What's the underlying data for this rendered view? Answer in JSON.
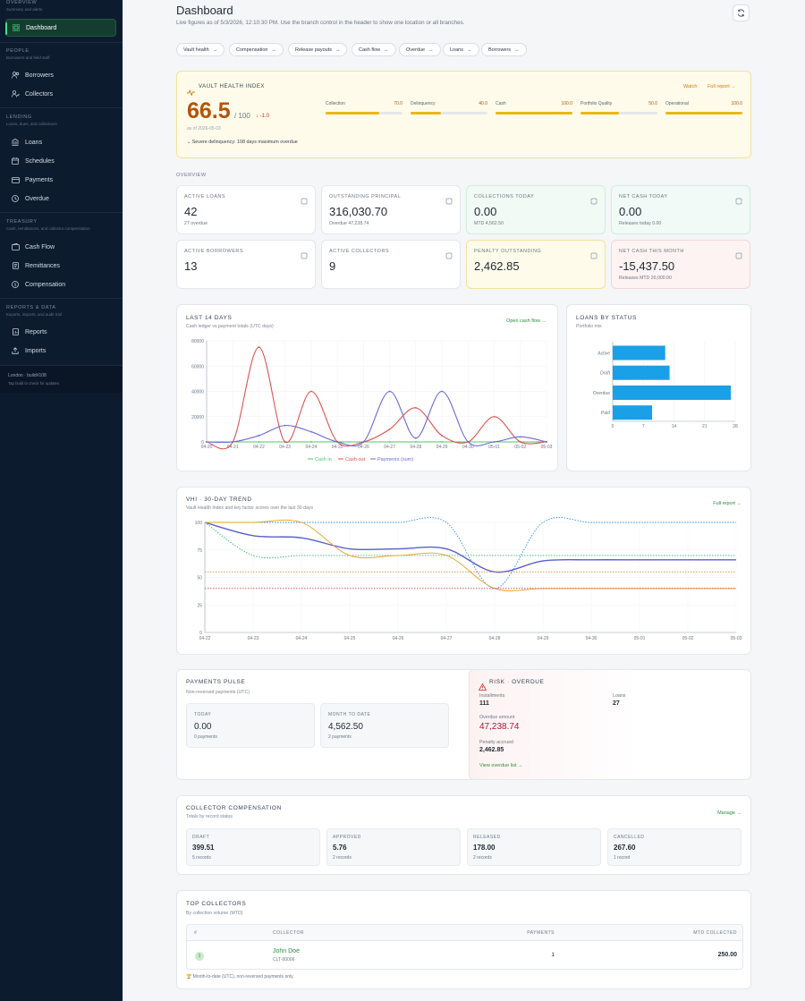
{
  "sidebar": {
    "overview": {
      "title": "OVERVIEW",
      "sub": "Summary and alerts",
      "items": [
        {
          "label": "Dashboard"
        }
      ]
    },
    "people": {
      "title": "PEOPLE",
      "sub": "Borrowers and field staff",
      "items": [
        {
          "label": "Borrowers"
        },
        {
          "label": "Collectors"
        }
      ]
    },
    "lending": {
      "title": "LENDING",
      "sub": "Loans, dues, and collections",
      "items": [
        {
          "label": "Loans"
        },
        {
          "label": "Schedules"
        },
        {
          "label": "Payments"
        },
        {
          "label": "Overdue"
        }
      ]
    },
    "treasury": {
      "title": "TREASURY",
      "sub": "Cash, remittances, and collector compensation",
      "items": [
        {
          "label": "Cash Flow"
        },
        {
          "label": "Remittances"
        },
        {
          "label": "Compensation"
        }
      ]
    },
    "reports": {
      "title": "REPORTS & DATA",
      "sub": "Exports, imports, and audit trail",
      "items": [
        {
          "label": "Reports"
        },
        {
          "label": "Imports"
        }
      ]
    },
    "footer": {
      "line1": "London · build#108",
      "line2": "Tap build to check for updates"
    }
  },
  "header": {
    "title": "Dashboard",
    "subtitle": "Live figures as of 5/3/2026, 12:10:30 PM. Use the branch control in the header to show one location or all branches."
  },
  "chips": [
    {
      "label": "Vault health"
    },
    {
      "label": "Compensation"
    },
    {
      "label": "Release payouts"
    },
    {
      "label": "Cash flow"
    },
    {
      "label": "Overdue"
    },
    {
      "label": "Loans"
    },
    {
      "label": "Borrowers"
    }
  ],
  "vhi": {
    "title": "VAULT HEALTH INDEX",
    "score": "66.5",
    "max": "/ 100",
    "delta": "↓ -1.0",
    "asof": "as of 2026-05-03",
    "status": "Watch",
    "report": "Full report →",
    "note": "Severe delinquency: 108 days maximum overdue",
    "factors": [
      {
        "name": "Collection",
        "value": "70.0",
        "pct": 0.7
      },
      {
        "name": "Delinquency",
        "value": "40.0",
        "pct": 0.4
      },
      {
        "name": "Cash",
        "value": "100.0",
        "pct": 1.0
      },
      {
        "name": "Portfolio Quality",
        "value": "50.0",
        "pct": 0.5
      },
      {
        "name": "Operational",
        "value": "100.0",
        "pct": 1.0
      }
    ]
  },
  "overview": {
    "label": "OVERVIEW",
    "kpis": [
      {
        "label": "ACTIVE LOANS",
        "value": "42",
        "sub": "27 overdue",
        "icon": "clipboard-icon"
      },
      {
        "label": "OUTSTANDING PRINCIPAL",
        "value": "316,030.70",
        "sub": "Overdue 47,238.74",
        "icon": "coins-icon"
      },
      {
        "label": "COLLECTIONS TODAY",
        "value": "0.00",
        "sub": "MTD 4,562.50",
        "icon": "cash-icon"
      },
      {
        "label": "NET CASH TODAY",
        "value": "0.00",
        "sub": "Releases today 0.00",
        "icon": "wallet-icon"
      },
      {
        "label": "ACTIVE BORROWERS",
        "value": "13",
        "sub": "",
        "icon": "users-icon"
      },
      {
        "label": "ACTIVE COLLECTORS",
        "value": "9",
        "sub": "",
        "icon": "user-icon"
      },
      {
        "label": "PENALTY OUTSTANDING",
        "value": "2,462.85",
        "sub": "",
        "icon": "scale-icon"
      },
      {
        "label": "NET CASH THIS MONTH",
        "value": "-15,437.50",
        "sub": "Releases MTD 20,000.00",
        "icon": "trend-icon"
      }
    ]
  },
  "cash_chart_card": {
    "title": "LAST 14 DAYS",
    "sub": "Cash ledger vs payment totals (UTC days)",
    "link": "Open cash flow →"
  },
  "status_chart_card": {
    "title": "LOANS BY STATUS",
    "sub": "Portfolio mix"
  },
  "vhi_trend_card": {
    "title": "VHI · 30-DAY TREND",
    "sub": "Vault Health Index and key factor scores over the last 30 days",
    "link": "Full report →"
  },
  "chart_data": [
    {
      "type": "line",
      "x": [
        "04-20",
        "04-21",
        "04-22",
        "04-23",
        "04-24",
        "04-25",
        "04-26",
        "04-27",
        "04-28",
        "04-29",
        "04-30",
        "05-01",
        "05-02",
        "05-03"
      ],
      "ylim": [
        0,
        80000
      ],
      "yticks": [
        "0",
        "20000",
        "40000",
        "60000",
        "80000"
      ],
      "legend": "bottom",
      "series": [
        {
          "name": "Cash in",
          "color": "#4cc46a",
          "values": [
            0,
            0,
            0,
            0,
            0,
            0,
            0,
            0,
            0,
            0,
            0,
            0,
            0,
            0
          ]
        },
        {
          "name": "Cash out",
          "color": "#e0524d",
          "values": [
            0,
            0,
            75000,
            0,
            40000,
            0,
            0,
            10000,
            27000,
            5000,
            0,
            20000,
            0,
            0
          ]
        },
        {
          "name": "Payments (sum)",
          "color": "#6a6ad8",
          "values": [
            0,
            0,
            5000,
            13000,
            8000,
            0,
            0,
            40000,
            3000,
            40000,
            0,
            0,
            4000,
            0
          ]
        }
      ]
    },
    {
      "type": "bar",
      "orientation": "horizontal",
      "categories": [
        "Active",
        "Draft",
        "Overdue",
        "Paid"
      ],
      "values": [
        12,
        13,
        27,
        9
      ],
      "xlim": [
        0,
        28
      ],
      "xticks": [
        "0",
        "7",
        "14",
        "21",
        "28"
      ],
      "color": "#1aa0e6"
    },
    {
      "type": "line",
      "x": [
        "04-22",
        "04-23",
        "04-24",
        "04-25",
        "04-26",
        "04-27",
        "04-28",
        "04-29",
        "04-30",
        "05-01",
        "05-02",
        "05-03"
      ],
      "ylim": [
        0,
        100
      ],
      "yticks": [
        "0",
        "25",
        "50",
        "75",
        "100"
      ],
      "series": [
        {
          "color": "#5a5fcf",
          "values": [
            100,
            88,
            86,
            76,
            76,
            76,
            55,
            65,
            66,
            66,
            66,
            66
          ],
          "dashed": false
        },
        {
          "color": "#2f8fe0",
          "values": [
            100,
            100,
            100,
            100,
            100,
            100,
            40,
            100,
            100,
            100,
            100,
            100
          ],
          "dashed": true
        },
        {
          "color": "#2fb86a",
          "values": [
            100,
            70,
            70,
            70,
            70,
            70,
            70,
            70,
            70,
            70,
            70,
            70
          ],
          "dashed": true
        },
        {
          "color": "#e8a020",
          "values": [
            100,
            100,
            100,
            70,
            70,
            70,
            40,
            40,
            40,
            40,
            40,
            40
          ],
          "dashed": false
        },
        {
          "color": "#f08030",
          "values": [
            55,
            55,
            55,
            55,
            55,
            55,
            55,
            55,
            55,
            55,
            55,
            55
          ],
          "dashed": true
        },
        {
          "color": "#d04040",
          "values": [
            40,
            40,
            40,
            40,
            40,
            40,
            40,
            40,
            40,
            40,
            40,
            40
          ],
          "dashed": true
        }
      ]
    }
  ],
  "pulse": {
    "title": "PAYMENTS PULSE",
    "sub": "Non-reversed payments (UTC)",
    "today_label": "TODAY",
    "today_value": "0.00",
    "today_sub": "0 payments",
    "mtd_label": "MONTH TO DATE",
    "mtd_value": "4,562.50",
    "mtd_sub": "2 payments"
  },
  "risk": {
    "title": "RISK · OVERDUE",
    "inst_label": "Installments",
    "inst_value": "111",
    "loans_label": "Loans",
    "loans_value": "27",
    "amount_label": "Overdue amount",
    "amount_value": "47,238.74",
    "penalty_label": "Penalty accrued",
    "penalty_value": "2,462.85",
    "link": "View overdue list →"
  },
  "comp": {
    "title": "COLLECTOR COMPENSATION",
    "sub": "Totals by record status",
    "link": "Manage →",
    "items": [
      {
        "label": "DRAFT",
        "value": "399.51",
        "sub": "5 records"
      },
      {
        "label": "APPROVED",
        "value": "5.76",
        "sub": "2 records"
      },
      {
        "label": "RELEASED",
        "value": "178.00",
        "sub": "2 records"
      },
      {
        "label": "CANCELLED",
        "value": "267.60",
        "sub": "1 record"
      }
    ]
  },
  "top": {
    "title": "TOP COLLECTORS",
    "sub": "By collection volume (MTD)",
    "headers": [
      "#",
      "COLLECTOR",
      "PAYMENTS",
      "MTD COLLECTED"
    ],
    "rows": [
      {
        "rank": "1",
        "name": "John Doe",
        "code": "CLT-00006",
        "payments": "1",
        "mtd": "250.00"
      }
    ],
    "footnote": "Month-to-date (UTC), non-reversed payments only."
  }
}
